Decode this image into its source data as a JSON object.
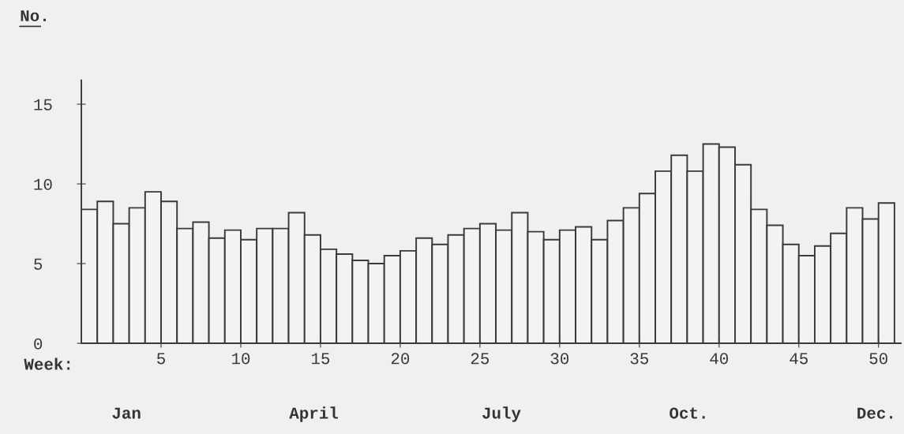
{
  "chart_data": {
    "type": "histogram",
    "ylabel": "No.",
    "xlabel": "Week:",
    "bins": [
      0,
      1,
      2,
      3,
      4,
      5,
      6,
      7,
      8,
      9,
      10,
      11,
      12,
      13,
      14,
      15,
      16,
      17,
      18,
      19,
      20,
      21,
      22,
      23,
      24,
      25,
      26,
      27,
      28,
      29,
      30,
      31,
      32,
      33,
      34,
      35,
      36,
      37,
      38,
      39,
      40,
      41,
      42,
      43,
      44,
      45,
      46,
      47,
      48,
      49,
      50,
      51
    ],
    "values": [
      8.4,
      8.9,
      7.5,
      8.5,
      9.5,
      8.9,
      7.2,
      7.6,
      6.6,
      7.1,
      6.5,
      7.2,
      7.2,
      8.2,
      6.8,
      5.9,
      5.6,
      5.2,
      5.0,
      5.5,
      5.8,
      6.6,
      6.2,
      6.8,
      7.2,
      7.5,
      7.1,
      8.2,
      7.0,
      6.5,
      7.1,
      7.3,
      6.5,
      7.7,
      8.5,
      9.4,
      10.8,
      11.8,
      10.8,
      12.5,
      12.3,
      11.2,
      8.4,
      7.4,
      6.2,
      5.5,
      6.1,
      6.9,
      8.5,
      7.8,
      8.8
    ],
    "color": "#f3f3f1",
    "xlim": [
      0,
      51.4
    ],
    "xticks": [
      5,
      10,
      15,
      20,
      25,
      30,
      35,
      40,
      45,
      50
    ],
    "ylim": [
      0,
      16.5
    ],
    "yticks": [
      0,
      5,
      10,
      15
    ],
    "annotations": [
      "Jan",
      "April",
      "July",
      "Oct.",
      "Dec."
    ],
    "grid": false,
    "legend": false
  }
}
